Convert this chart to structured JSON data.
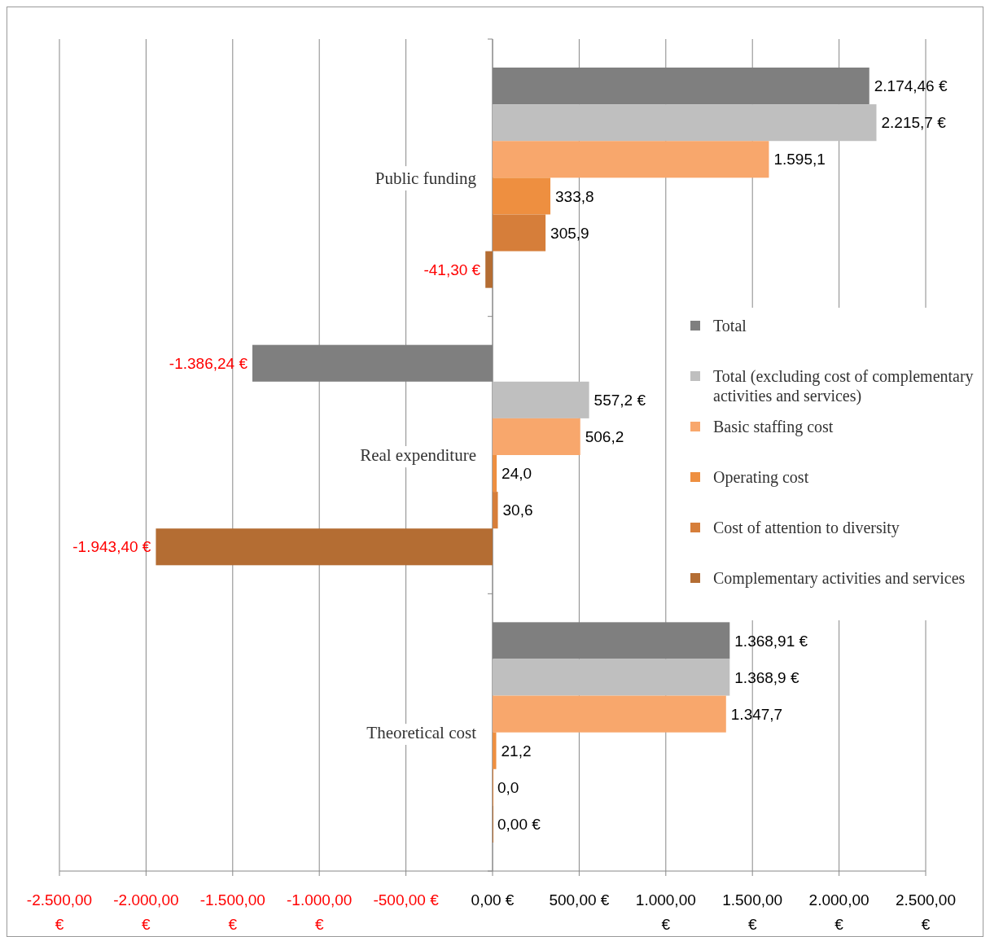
{
  "chart_data": {
    "type": "bar",
    "orientation": "horizontal",
    "categories": [
      "Public funding",
      "Real expenditure",
      "Theoretical cost"
    ],
    "series": [
      {
        "name": "Total",
        "color": "#7f7f7f",
        "values": [
          2174.46,
          -1386.24,
          1368.91
        ],
        "value_labels": [
          "2.174,46 €",
          "-1.386,24 €",
          "1.368,91 €"
        ]
      },
      {
        "name": "Total (excluding cost of complementary activities and services)",
        "color": "#bfbfbf",
        "values": [
          2215.7,
          557.2,
          1368.9
        ],
        "value_labels": [
          "2.215,7 €",
          "557,2 €",
          "1.368,9 €"
        ]
      },
      {
        "name": "Basic staffing cost",
        "color": "#f8a76c",
        "values": [
          1595.1,
          506.2,
          1347.7
        ],
        "value_labels": [
          "1.595,1",
          "506,2",
          "1.347,7"
        ]
      },
      {
        "name": "Operating cost",
        "color": "#ee8f40",
        "values": [
          333.8,
          24.0,
          21.2
        ],
        "value_labels": [
          "333,8",
          "24,0",
          "21,2"
        ]
      },
      {
        "name": "Cost of attention to diversity",
        "color": "#d67e3a",
        "values": [
          305.9,
          30.6,
          0.0
        ],
        "value_labels": [
          "305,9",
          "30,6",
          "0,0"
        ]
      },
      {
        "name": "Complementary activities and services",
        "color": "#b46d33",
        "values": [
          -41.3,
          -1943.4,
          0.0
        ],
        "value_labels": [
          "-41,30 €",
          "-1.943,40 €",
          "0,00 €"
        ]
      }
    ],
    "xlim": [
      -2500,
      2500
    ],
    "xticks": [
      {
        "value": -2500,
        "label": "-2.500,00 €"
      },
      {
        "value": -2000,
        "label": "-2.000,00 €"
      },
      {
        "value": -1500,
        "label": "-1.500,00 €"
      },
      {
        "value": -1000,
        "label": "-1.000,00 €"
      },
      {
        "value": -500,
        "label": "-500,00 €"
      },
      {
        "value": 0,
        "label": "0,00 €"
      },
      {
        "value": 500,
        "label": "500,00 €"
      },
      {
        "value": 1000,
        "label": "1.000,00 €"
      },
      {
        "value": 1500,
        "label": "1.500,00 €"
      },
      {
        "value": 2000,
        "label": "2.000,00 €"
      },
      {
        "value": 2500,
        "label": "2.500,00 €"
      }
    ],
    "grid": "x",
    "legend": "right"
  }
}
